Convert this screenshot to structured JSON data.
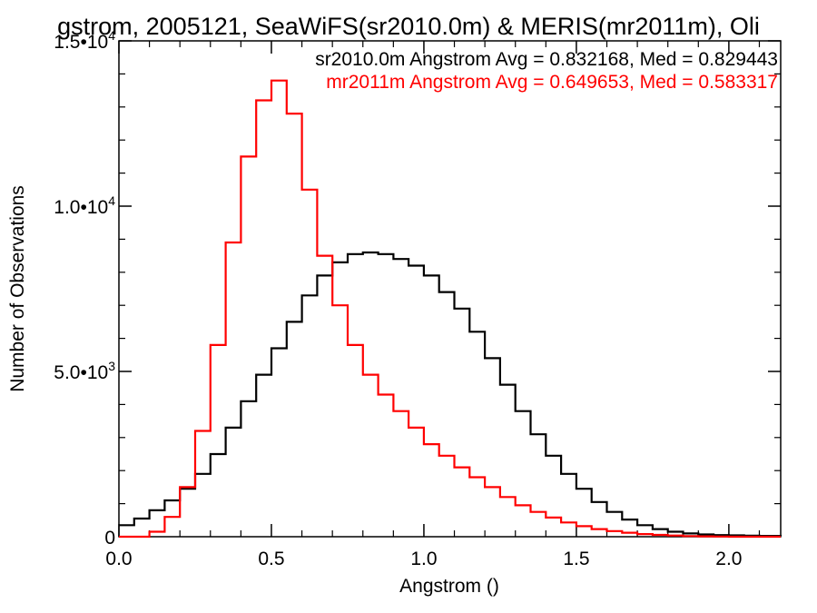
{
  "chart_data": {
    "type": "line",
    "title": "gstrom, 2005121, SeaWiFS(sr2010.0m) & MERIS(mr2011m), Oli",
    "xlabel": "Angstrom ()",
    "ylabel": "Number of Observations",
    "xlim": [
      0.0,
      2.17
    ],
    "ylim": [
      0,
      15000
    ],
    "x_ticks": [
      0.0,
      0.5,
      1.0,
      1.5,
      2.0
    ],
    "x_tick_labels": [
      "0.0",
      "0.5",
      "1.0",
      "1.5",
      "2.0"
    ],
    "y_ticks": [
      0,
      5000,
      10000,
      15000
    ],
    "y_tick_labels": [
      {
        "mantissa": "0",
        "exp": ""
      },
      {
        "mantissa": "5.0•10",
        "exp": "3"
      },
      {
        "mantissa": "1.0•10",
        "exp": "4"
      },
      {
        "mantissa": "1.5•10",
        "exp": "4"
      }
    ],
    "grid": false,
    "legend": "top-right",
    "series": [
      {
        "name": "sr2010.0m",
        "color": "#000000",
        "label": "sr2010.0m Angstrom Avg = 0.832168, Med = 0.829443",
        "step": true,
        "x": [
          0.0,
          0.05,
          0.1,
          0.15,
          0.2,
          0.25,
          0.3,
          0.35,
          0.4,
          0.45,
          0.5,
          0.55,
          0.6,
          0.65,
          0.7,
          0.75,
          0.8,
          0.85,
          0.9,
          0.95,
          1.0,
          1.05,
          1.1,
          1.15,
          1.2,
          1.25,
          1.3,
          1.35,
          1.4,
          1.45,
          1.5,
          1.55,
          1.6,
          1.65,
          1.7,
          1.75,
          1.8,
          1.85,
          1.9,
          1.95,
          2.0,
          2.05,
          2.1,
          2.17
        ],
        "y": [
          350,
          550,
          800,
          1100,
          1450,
          1900,
          2500,
          3300,
          4100,
          4900,
          5700,
          6500,
          7300,
          7900,
          8300,
          8550,
          8600,
          8550,
          8400,
          8200,
          7900,
          7400,
          6900,
          6200,
          5400,
          4600,
          3800,
          3100,
          2450,
          1900,
          1450,
          1050,
          750,
          520,
          350,
          230,
          150,
          100,
          70,
          50,
          40,
          30,
          25,
          20
        ]
      },
      {
        "name": "mr2011m",
        "color": "#ff0000",
        "label": "mr2011m Angstrom Avg = 0.649653, Med = 0.583317",
        "step": true,
        "x": [
          0.0,
          0.05,
          0.1,
          0.15,
          0.2,
          0.25,
          0.3,
          0.35,
          0.4,
          0.45,
          0.5,
          0.55,
          0.6,
          0.65,
          0.7,
          0.75,
          0.8,
          0.85,
          0.9,
          0.95,
          1.0,
          1.05,
          1.1,
          1.15,
          1.2,
          1.25,
          1.3,
          1.35,
          1.4,
          1.45,
          1.5,
          1.55,
          1.6,
          1.65,
          1.7,
          1.75,
          1.8,
          1.85,
          1.9,
          1.95,
          2.0,
          2.05,
          2.1,
          2.17
        ],
        "y": [
          0,
          0,
          150,
          600,
          1500,
          3200,
          5800,
          8900,
          11500,
          13200,
          13800,
          12800,
          10500,
          8500,
          7000,
          5800,
          4900,
          4300,
          3800,
          3300,
          2800,
          2450,
          2100,
          1800,
          1500,
          1200,
          950,
          750,
          580,
          430,
          320,
          230,
          170,
          120,
          80,
          55,
          35,
          20,
          10,
          5,
          0,
          0,
          0,
          0
        ]
      }
    ]
  }
}
